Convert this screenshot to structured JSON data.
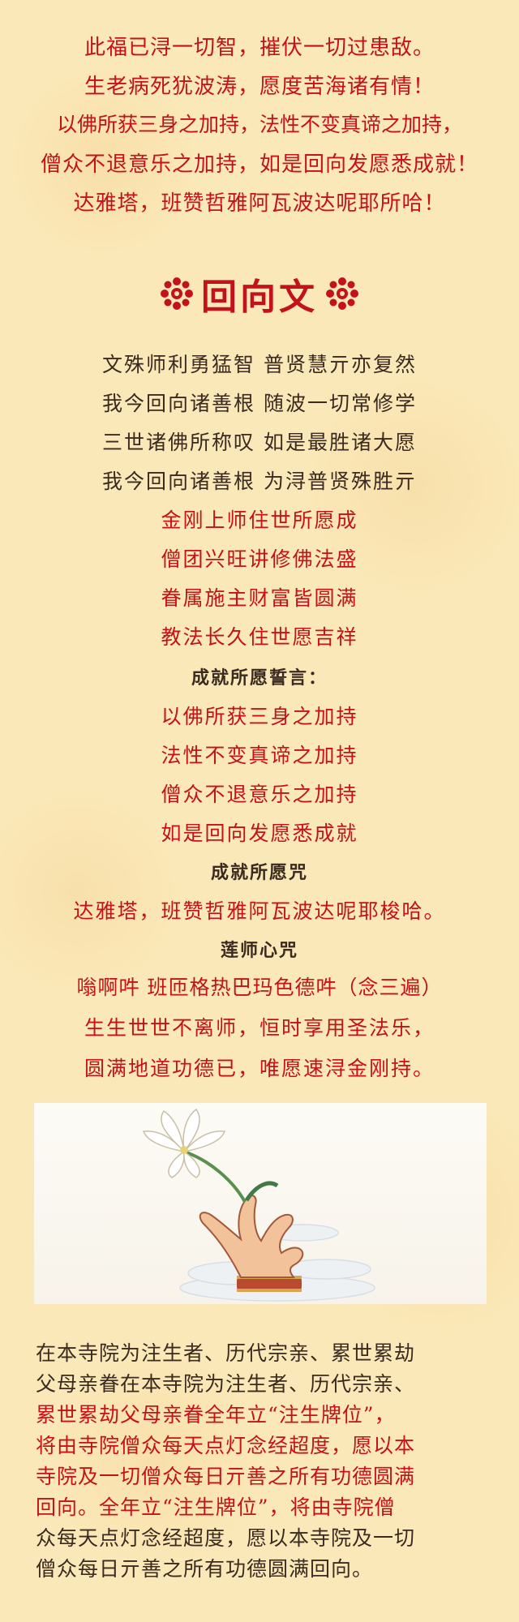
{
  "opening_lines": [
    "此福已浔一切智，摧伏一切过患敌。",
    "生老病死犹波涛，愿度苦海诸有情！",
    "以佛所获三身之加持，法性不变真谛之加持，",
    "僧众不退意乐之加持，如是回向发愿悉成就！",
    "达雅塔，班赞哲雅阿瓦波达呢耶所哈！"
  ],
  "title": "回向文",
  "ornament_icon": "red-flower-ornament-icon",
  "verses_dark": [
    "文殊师利勇猛智  普贤慧亓亦复然",
    "我今回向诸善根  随波一切常修学",
    "三世诸佛所称叹  如是最胜诸大愿",
    "我今回向诸善根  为浔普贤殊胜亓"
  ],
  "verses_red": [
    "金刚上师住世所愿成",
    "僧团兴旺讲修佛法盛",
    "眷属施主财富皆圆满",
    "教法长久住世愿吉祥"
  ],
  "vow_heading": "成就所愿誓言：",
  "vow_lines": [
    "以佛所获三身之加持",
    "法性不变真谛之加持",
    "僧众不退意乐之加持",
    "如是回向发愿悉成就"
  ],
  "mantra_heading": "成就所愿咒",
  "mantra_line": "达雅塔，班赞哲雅阿瓦波达呢耶梭哈。",
  "lotus_heading": "莲师心咒",
  "lotus_lines": [
    "嗡啊吽 班匝格热巴玛色德吽（念三遍）",
    "生生世世不离师，恒时享用圣法乐，",
    "圆满地道功德已，唯愿速浔金刚持。"
  ],
  "image_subject": "hand-holding-lotus-illustration",
  "paragraph_lines": [
    "在本寺院为注生者、历代宗亲、累世累劫",
    "父母亲眷在本寺院为注生者、历代宗亲、",
    "累世累劫父母亲眷全年立“注生牌位”，",
    "将由寺院僧众每天点灯念经超度，愿以本",
    "寺院及一切僧众每日亓善之所有功德圆满",
    "回向。全年立“注生牌位”，将由寺院僧",
    "众每天点灯念经超度，愿以本寺院及一切",
    "僧众每日亓善之所有功德圆满回向。"
  ],
  "paragraph_colors": [
    "dark",
    "dark",
    "red",
    "red",
    "red",
    "red",
    "dark",
    "dark"
  ]
}
